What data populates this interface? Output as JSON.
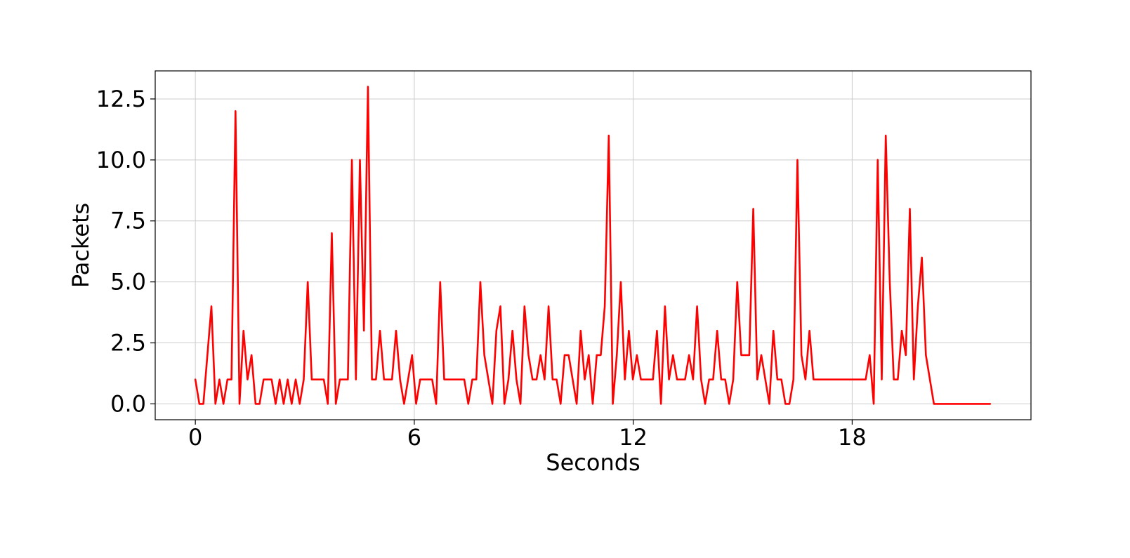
{
  "chart_data": {
    "type": "line",
    "title": "",
    "xlabel": "Seconds",
    "ylabel": "Packets",
    "xlim": [
      -1.1,
      22.9
    ],
    "ylim": [
      -0.65,
      13.65
    ],
    "xticks": [
      0,
      6,
      12,
      18
    ],
    "xtick_labels": [
      "0",
      "6",
      "12",
      "18"
    ],
    "yticks": [
      0,
      2.5,
      5,
      7.5,
      10,
      12.5
    ],
    "ytick_labels": [
      "0.0",
      "2.5",
      "5.0",
      "7.5",
      "10.0",
      "12.5"
    ],
    "grid": true,
    "legend": "none",
    "series": [
      {
        "color": "#ff0000",
        "x": [
          0,
          0.11,
          0.22,
          0.33,
          0.44,
          0.55,
          0.66,
          0.77,
          0.88,
          0.99,
          1.1,
          1.21,
          1.32,
          1.43,
          1.54,
          1.65,
          1.76,
          1.87,
          1.98,
          2.09,
          2.2,
          2.31,
          2.42,
          2.53,
          2.64,
          2.75,
          2.86,
          2.97,
          3.08,
          3.19,
          3.3,
          3.41,
          3.52,
          3.63,
          3.74,
          3.85,
          3.96,
          4.07,
          4.18,
          4.29,
          4.4,
          4.51,
          4.62,
          4.73,
          4.84,
          4.95,
          5.06,
          5.17,
          5.28,
          5.39,
          5.5,
          5.61,
          5.72,
          5.83,
          5.94,
          6.05,
          6.16,
          6.27,
          6.38,
          6.49,
          6.6,
          6.71,
          6.82,
          6.93,
          7.04,
          7.15,
          7.26,
          7.37,
          7.48,
          7.59,
          7.7,
          7.81,
          7.92,
          8.03,
          8.14,
          8.25,
          8.36,
          8.47,
          8.58,
          8.69,
          8.8,
          8.91,
          9.02,
          9.13,
          9.24,
          9.35,
          9.46,
          9.57,
          9.68,
          9.79,
          9.9,
          10.01,
          10.12,
          10.23,
          10.34,
          10.45,
          10.56,
          10.67,
          10.78,
          10.89,
          11.0,
          11.11,
          11.22,
          11.33,
          11.44,
          11.55,
          11.66,
          11.77,
          11.88,
          11.99,
          12.1,
          12.21,
          12.32,
          12.43,
          12.54,
          12.65,
          12.76,
          12.87,
          12.98,
          13.09,
          13.2,
          13.31,
          13.42,
          13.53,
          13.64,
          13.75,
          13.86,
          13.97,
          14.08,
          14.19,
          14.3,
          14.41,
          14.52,
          14.63,
          14.74,
          14.85,
          14.96,
          15.07,
          15.18,
          15.29,
          15.4,
          15.51,
          15.62,
          15.73,
          15.84,
          15.95,
          16.06,
          16.17,
          16.28,
          16.39,
          16.5,
          16.61,
          16.72,
          16.83,
          16.94,
          17.05,
          17.16,
          17.27,
          17.38,
          17.49,
          17.6,
          17.71,
          17.82,
          17.93,
          18.04,
          18.15,
          18.26,
          18.37,
          18.48,
          18.59,
          18.7,
          18.81,
          18.92,
          19.03,
          19.14,
          19.25,
          19.36,
          19.47,
          19.58,
          19.69,
          19.8,
          19.91,
          20.02,
          20.13,
          20.24,
          20.35,
          20.46,
          20.57,
          20.68,
          20.79,
          20.9,
          21.01,
          21.12,
          21.23,
          21.34,
          21.45,
          21.56,
          21.67,
          21.78
        ],
        "y": [
          1,
          0,
          0,
          2,
          4,
          0,
          1,
          0,
          1,
          1,
          12,
          0,
          3,
          1,
          2,
          0,
          0,
          1,
          1,
          1,
          0,
          1,
          0,
          1,
          0,
          1,
          0,
          1,
          5,
          1,
          1,
          1,
          1,
          0,
          7,
          0,
          1,
          1,
          1,
          10,
          1,
          10,
          3,
          13,
          1,
          1,
          3,
          1,
          1,
          1,
          3,
          1,
          0,
          1,
          2,
          0,
          1,
          1,
          1,
          1,
          0,
          5,
          1,
          1,
          1,
          1,
          1,
          1,
          0,
          1,
          1,
          5,
          2,
          1,
          0,
          3,
          4,
          0,
          1,
          3,
          1,
          0,
          4,
          2,
          1,
          1,
          2,
          1,
          4,
          1,
          1,
          0,
          2,
          2,
          1,
          0,
          3,
          1,
          2,
          0,
          2,
          2,
          4,
          11,
          0,
          2,
          5,
          1,
          3,
          1,
          2,
          1,
          1,
          1,
          1,
          3,
          0,
          4,
          1,
          2,
          1,
          1,
          1,
          2,
          1,
          4,
          1,
          0,
          1,
          1,
          3,
          1,
          1,
          0,
          1,
          5,
          2,
          2,
          2,
          8,
          1,
          2,
          1,
          0,
          3,
          1,
          1,
          0,
          0,
          1,
          10,
          2,
          1,
          3,
          1,
          1,
          1,
          1,
          1,
          1,
          1,
          1,
          1,
          1,
          1,
          1,
          1,
          1,
          2,
          0,
          10,
          1,
          11,
          5,
          1,
          1,
          3,
          2,
          8,
          1,
          4,
          6,
          2,
          1,
          0,
          0,
          0,
          0,
          0,
          0,
          0,
          0,
          0,
          0,
          0,
          0,
          0,
          0,
          0
        ]
      }
    ]
  }
}
